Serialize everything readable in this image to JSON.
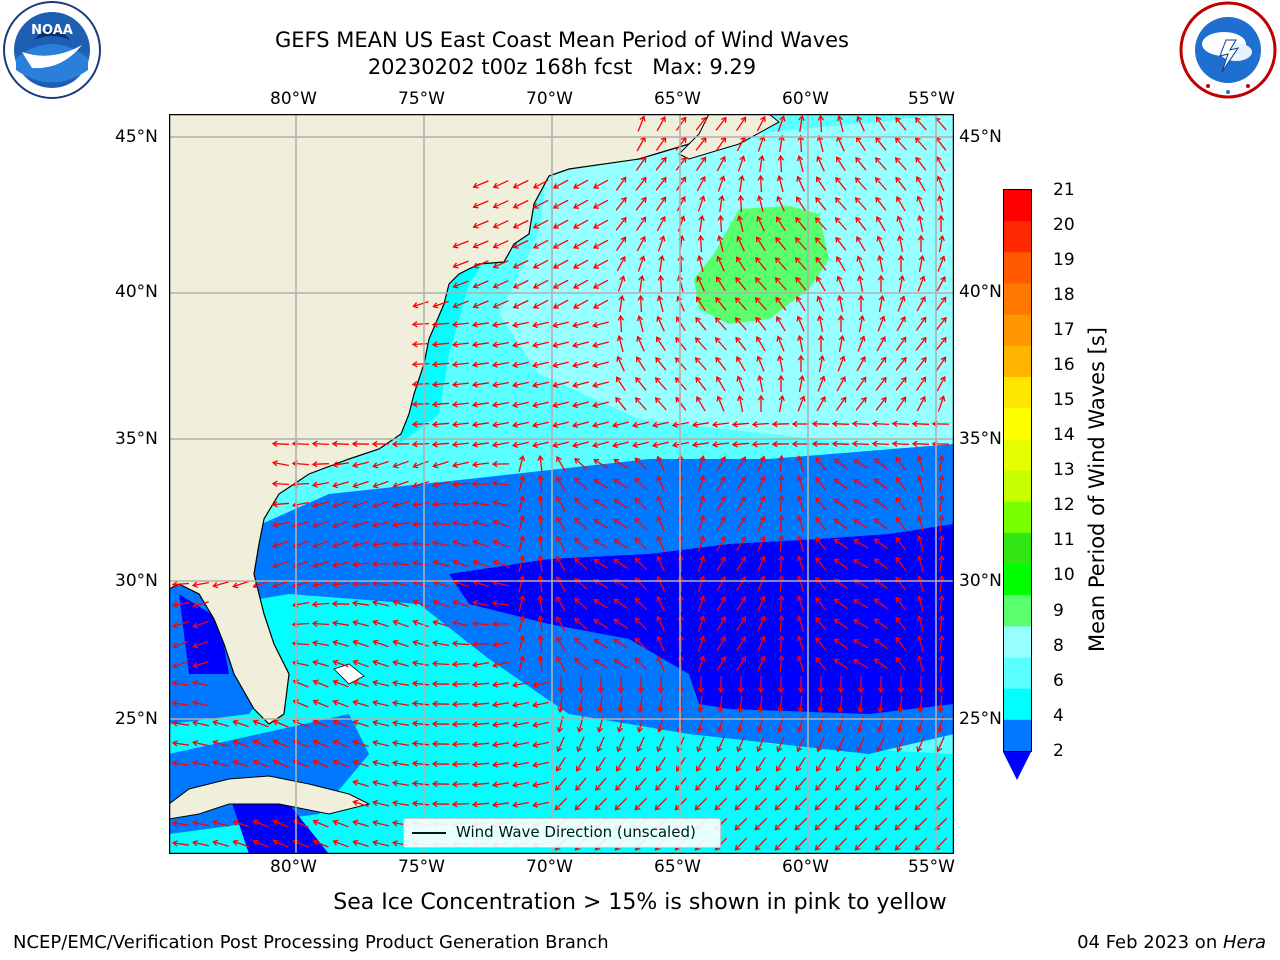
{
  "title": {
    "line1": "GEFS MEAN US East Coast Mean Period of Wind Waves",
    "line2": "20230202 t00z 168h fcst   Max: 9.29"
  },
  "logos": {
    "left": {
      "text": "NOAA",
      "ring_text": "NATIONAL OCEANIC AND ATMOSPHERIC ADMINISTRATION",
      "icon": "noaa-logo"
    },
    "right": {
      "ring_text": "NATIONAL WEATHER SERVICE",
      "icon": "nws-logo"
    }
  },
  "map": {
    "lon_labels": [
      "80°W",
      "75°W",
      "70°W",
      "65°W",
      "60°W",
      "55°W"
    ],
    "lat_labels": [
      "45°N",
      "40°N",
      "35°N",
      "30°N",
      "25°N"
    ],
    "legend_text": "Wind Wave Direction (unscaled)",
    "vector_color": "#ff0000",
    "land_color": "#efefdc"
  },
  "colorbar": {
    "label": "Mean Period of Wind Waves [s]",
    "ticks": [
      "21",
      "20",
      "19",
      "18",
      "17",
      "16",
      "15",
      "14",
      "13",
      "12",
      "11",
      "10",
      "9",
      "8",
      "6",
      "4",
      "2"
    ],
    "colors": [
      "#ff0000",
      "#ff2800",
      "#ff5a00",
      "#ff7800",
      "#ff9600",
      "#ffb400",
      "#ffe600",
      "#ffff00",
      "#e6ff00",
      "#c8ff00",
      "#78ff00",
      "#32e614",
      "#00ff00",
      "#5aff6e",
      "#96ffff",
      "#5affff",
      "#00ffff",
      "#0078ff"
    ],
    "under_color": "#0000ff"
  },
  "caption": "Sea Ice Concentration > 15% is shown in pink to yellow",
  "footer": {
    "left": "NCEP/EMC/Verification Post Processing Product Generation Branch",
    "right_prefix": "04 Feb 2023 on ",
    "right_host": "Hera"
  }
}
